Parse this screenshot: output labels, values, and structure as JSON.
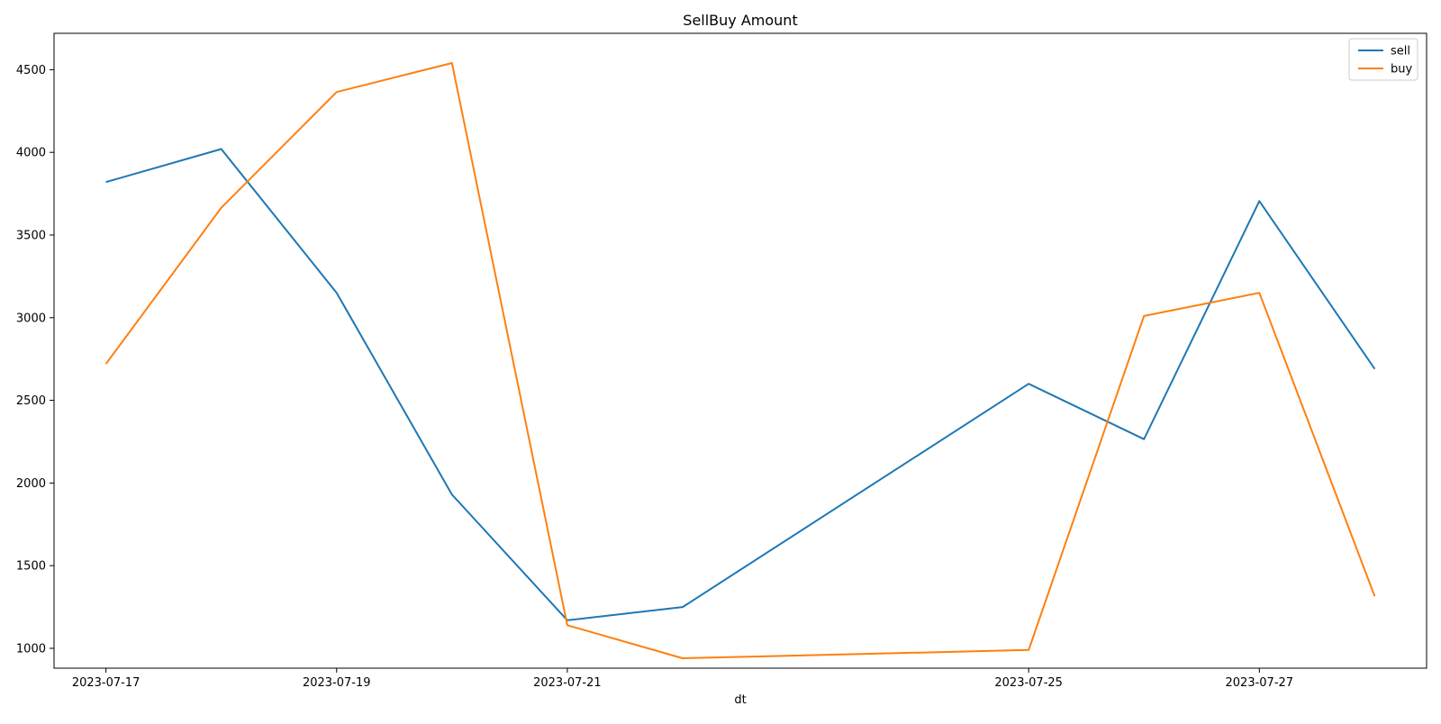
{
  "chart_data": {
    "type": "line",
    "title": "SellBuy Amount",
    "xlabel": "dt",
    "ylabel": "",
    "x": [
      "2023-07-17",
      "2023-07-18",
      "2023-07-19",
      "2023-07-20",
      "2023-07-21",
      "2023-07-22",
      "2023-07-25",
      "2023-07-26",
      "2023-07-27",
      "2023-07-28"
    ],
    "x_ticks": [
      "2023-07-17",
      "2023-07-19",
      "2023-07-21",
      "2023-07-25",
      "2023-07-27"
    ],
    "y_ticks": [
      1000,
      1500,
      2000,
      2500,
      3000,
      3500,
      4000,
      4500
    ],
    "ylim": [
      880,
      4720
    ],
    "series": [
      {
        "name": "sell",
        "color": "#1f77b4",
        "values": [
          3820,
          4020,
          3150,
          1930,
          1170,
          1250,
          2600,
          2265,
          3705,
          2690
        ]
      },
      {
        "name": "buy",
        "color": "#ff7f0e",
        "values": [
          2720,
          3665,
          4365,
          4540,
          1140,
          940,
          990,
          3010,
          3150,
          1315
        ]
      }
    ],
    "legend": "top-right",
    "grid": false
  }
}
